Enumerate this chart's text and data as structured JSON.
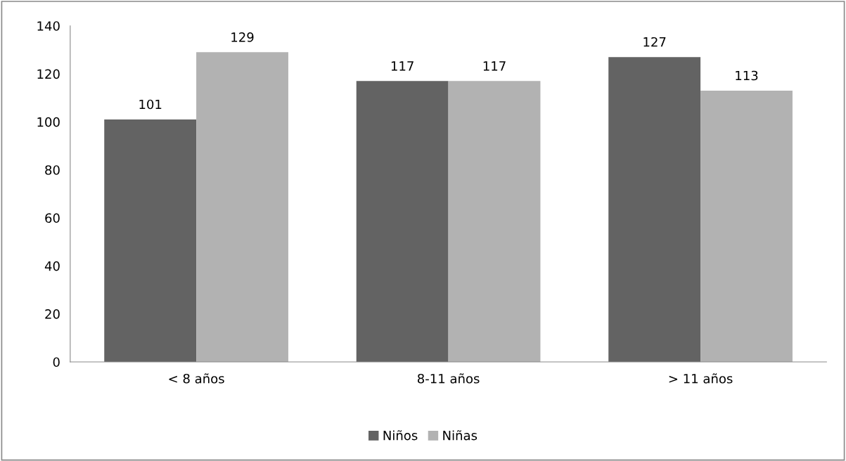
{
  "chart_data": {
    "type": "bar",
    "categories": [
      "< 8 años",
      "8-11 años",
      "> 11 años"
    ],
    "series": [
      {
        "name": "Niños",
        "color": "#636363",
        "values": [
          101,
          117,
          127
        ]
      },
      {
        "name": "Niñas",
        "color": "#b2b2b2",
        "values": [
          129,
          117,
          113
        ]
      }
    ],
    "ylim": [
      0,
      140
    ],
    "yticks": [
      0,
      20,
      40,
      60,
      80,
      100,
      120,
      140
    ],
    "data_labels": true,
    "grid": false,
    "legend": "bottom"
  }
}
